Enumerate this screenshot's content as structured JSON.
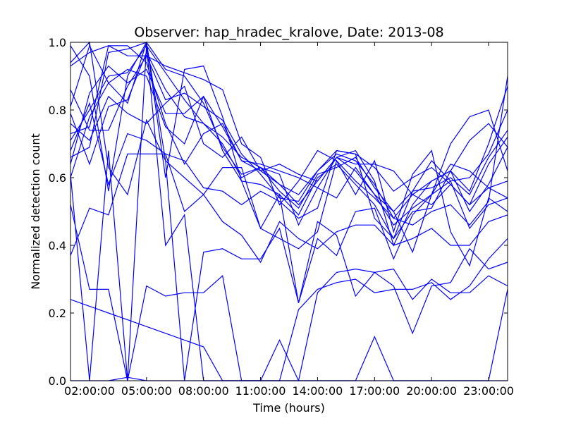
{
  "chart_data": {
    "type": "line",
    "title": "Observer: hap_hradec_kralove, Date: 2013-08",
    "xlabel": "Time (hours)",
    "ylabel": "Normalized detection count",
    "xlim": [
      0,
      23
    ],
    "ylim": [
      0.0,
      1.0
    ],
    "xticks": [
      {
        "value": 1,
        "label": "02:00:00"
      },
      {
        "value": 4,
        "label": "05:00:00"
      },
      {
        "value": 7,
        "label": "08:00:00"
      },
      {
        "value": 10,
        "label": "11:00:00"
      },
      {
        "value": 13,
        "label": "14:00:00"
      },
      {
        "value": 16,
        "label": "17:00:00"
      },
      {
        "value": 19,
        "label": "20:00:00"
      },
      {
        "value": 22,
        "label": "23:00:00"
      }
    ],
    "yticks": [
      {
        "value": 0.0,
        "label": "0.0"
      },
      {
        "value": 0.2,
        "label": "0.2"
      },
      {
        "value": 0.4,
        "label": "0.4"
      },
      {
        "value": 0.6,
        "label": "0.6"
      },
      {
        "value": 0.8,
        "label": "0.8"
      },
      {
        "value": 1.0,
        "label": "1.0"
      }
    ],
    "line_color": "#0000ff",
    "grid": false,
    "legend": false,
    "x": [
      0,
      1,
      2,
      3,
      4,
      5,
      6,
      7,
      8,
      9,
      10,
      11,
      12,
      13,
      14,
      15,
      16,
      17,
      18,
      19,
      20,
      21,
      22,
      23
    ],
    "series": [
      {
        "values": [
          0.66,
          0.69,
          0.97,
          0.98,
          1.0,
          0.92,
          0.9,
          0.82,
          0.69,
          0.61,
          0.63,
          0.61,
          0.46,
          0.57,
          0.66,
          0.68,
          0.59,
          0.4,
          0.52,
          0.59,
          0.62,
          0.56,
          0.7,
          0.87
        ]
      },
      {
        "values": [
          0.71,
          0.8,
          0.9,
          0.91,
          0.99,
          0.91,
          0.83,
          0.76,
          0.72,
          0.66,
          0.63,
          0.56,
          0.51,
          0.61,
          0.63,
          0.66,
          0.57,
          0.5,
          0.56,
          0.57,
          0.6,
          0.55,
          0.66,
          0.74
        ]
      },
      {
        "values": [
          0.86,
          0.74,
          0.74,
          0.87,
          0.96,
          0.83,
          0.85,
          0.81,
          0.77,
          0.67,
          0.61,
          0.54,
          0.53,
          0.62,
          0.67,
          0.65,
          0.58,
          0.48,
          0.55,
          0.52,
          0.58,
          0.52,
          0.64,
          0.72
        ]
      },
      {
        "values": [
          0.79,
          0.64,
          0.81,
          0.83,
          0.97,
          0.86,
          0.78,
          0.76,
          0.7,
          0.6,
          0.63,
          0.58,
          0.52,
          0.59,
          0.66,
          0.62,
          0.55,
          0.46,
          0.51,
          0.55,
          0.59,
          0.6,
          0.67,
          0.8
        ]
      },
      {
        "values": [
          0.64,
          0.85,
          0.93,
          0.88,
          0.92,
          0.79,
          0.79,
          0.84,
          0.68,
          0.59,
          0.58,
          0.55,
          0.49,
          0.6,
          0.64,
          0.58,
          0.52,
          0.42,
          0.5,
          0.51,
          0.62,
          0.5,
          0.58,
          0.69
        ]
      },
      {
        "values": [
          0.37,
          0.51,
          0.49,
          0.67,
          0.67,
          0.67,
          0.5,
          0.55,
          0.47,
          0.43,
          0.35,
          0.47,
          0.42,
          0.39,
          0.44,
          0.46,
          0.46,
          0.4,
          0.42,
          0.45,
          0.4,
          0.4,
          0.47,
          0.49
        ]
      },
      {
        "values": [
          0.52,
          0.27,
          0.27,
          0.0,
          0.28,
          0.25,
          0.26,
          0.26,
          0.31,
          0.0,
          0.0,
          0.0,
          0.0,
          0.26,
          0.32,
          0.33,
          0.32,
          0.33,
          0.24,
          0.3,
          0.26,
          0.26,
          0.31,
          0.28
        ]
      },
      {
        "values": [
          0.24,
          0.22,
          0.2,
          0.18,
          0.16,
          0.14,
          0.12,
          0.1,
          0.0,
          0.0,
          0.0,
          0.0,
          0.21,
          0.27,
          0.29,
          0.3,
          0.26,
          0.27,
          0.27,
          0.29,
          0.24,
          0.28,
          0.36,
          0.42
        ]
      },
      {
        "values": [
          0.0,
          0.0,
          0.0,
          0.01,
          0.0,
          0.0,
          0.0,
          0.0,
          0.0,
          0.0,
          0.0,
          0.0,
          0.0,
          0.0,
          0.0,
          0.0,
          0.0,
          0.0,
          0.0,
          0.0,
          0.0,
          0.0,
          0.0,
          0.0
        ]
      },
      {
        "values": [
          0.61,
          0.0,
          0.68,
          0.0,
          0.99,
          0.4,
          0.49,
          0.0,
          0.0,
          0.0,
          0.0,
          0.12,
          0.0,
          0.0,
          0.0,
          0.0,
          0.13,
          0.0,
          0.0,
          0.0,
          0.0,
          0.0,
          0.0,
          0.27
        ]
      },
      {
        "values": [
          0.94,
          1.0,
          0.63,
          0.55,
          0.77,
          0.65,
          0.0,
          0.38,
          0.39,
          0.36,
          0.36,
          0.45,
          0.23,
          0.47,
          0.43,
          0.25,
          0.32,
          0.28,
          0.14,
          0.28,
          0.29,
          0.39,
          0.33,
          0.35
        ]
      },
      {
        "values": [
          0.99,
          0.9,
          0.56,
          0.9,
          1.0,
          0.65,
          0.6,
          0.55,
          0.63,
          0.63,
          0.45,
          0.42,
          0.39,
          0.44,
          0.65,
          0.55,
          0.65,
          0.44,
          0.61,
          0.68,
          0.44,
          0.34,
          0.54,
          0.5
        ]
      },
      {
        "values": [
          0.68,
          0.82,
          0.58,
          0.73,
          0.71,
          0.67,
          0.65,
          0.57,
          0.56,
          0.52,
          0.56,
          0.53,
          0.48,
          0.51,
          0.68,
          0.67,
          0.48,
          0.42,
          0.56,
          0.65,
          0.59,
          0.45,
          0.52,
          0.54
        ]
      },
      {
        "values": [
          0.81,
          0.99,
          0.88,
          0.82,
          1.0,
          0.6,
          0.92,
          0.93,
          0.78,
          0.59,
          0.45,
          0.55,
          0.23,
          0.42,
          0.37,
          0.5,
          0.51,
          0.36,
          0.49,
          0.55,
          0.64,
          0.62,
          0.57,
          0.54
        ]
      },
      {
        "values": [
          0.93,
          0.97,
          0.99,
          0.96,
          0.96,
          0.93,
          0.91,
          0.89,
          0.86,
          0.7,
          0.66,
          0.52,
          0.59,
          0.68,
          0.65,
          0.59,
          0.54,
          0.48,
          0.46,
          0.5,
          0.52,
          0.46,
          0.53,
          0.9
        ]
      },
      {
        "values": [
          0.73,
          0.75,
          0.99,
          0.99,
          0.94,
          0.76,
          0.64,
          0.73,
          0.76,
          0.65,
          0.64,
          0.62,
          0.6,
          0.57,
          0.54,
          0.63,
          0.55,
          0.5,
          0.38,
          0.55,
          0.7,
          0.78,
          0.8,
          0.62
        ]
      },
      {
        "values": [
          0.76,
          0.71,
          0.84,
          0.79,
          0.76,
          0.82,
          0.87,
          0.7,
          0.66,
          0.72,
          0.62,
          0.64,
          0.61,
          0.59,
          0.66,
          0.64,
          0.64,
          0.62,
          0.55,
          0.59,
          0.62,
          0.71,
          0.76,
          0.69
        ]
      },
      {
        "values": [
          0.6,
          0.78,
          0.88,
          0.92,
          0.9,
          0.75,
          0.7,
          0.84,
          0.75,
          0.65,
          0.62,
          0.58,
          0.55,
          0.62,
          0.68,
          0.67,
          0.63,
          0.56,
          0.6,
          0.63,
          0.58,
          0.52,
          0.57,
          0.59
        ]
      }
    ]
  }
}
